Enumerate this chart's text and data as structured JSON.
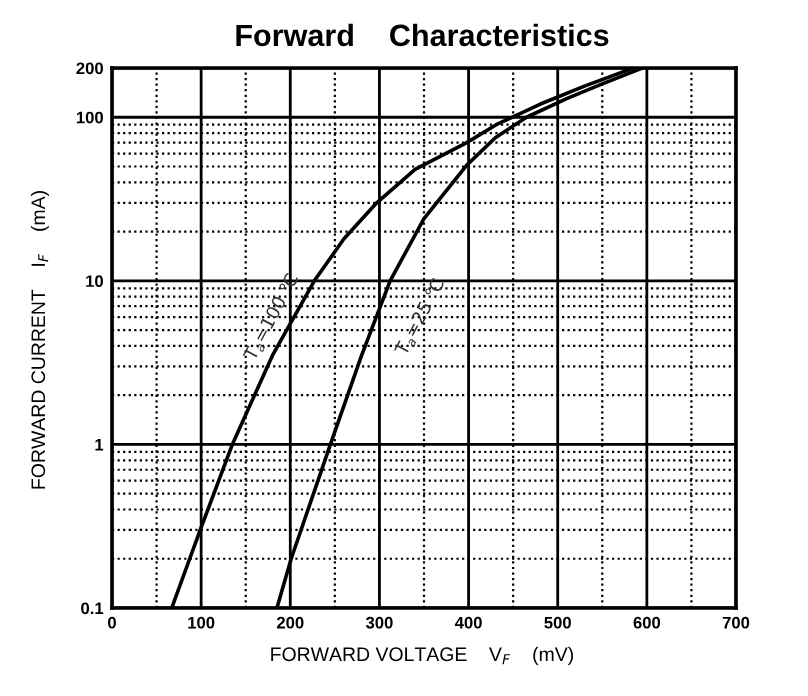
{
  "chart_data": {
    "type": "line",
    "title": "Forward    Characteristics",
    "xlabel": "FORWARD VOLTAGE    V$_{F}$    (mV)",
    "ylabel": "FORWARD CURRENT    I$_{F}$    (mA)",
    "series": [
      {
        "color": "#000000",
        "x": [
          67,
          99,
          135,
          180,
          227,
          260,
          297,
          340,
          398,
          431,
          480,
          530,
          585
        ],
        "values": [
          0.1,
          0.3,
          1,
          3.5,
          10,
          18,
          30,
          48,
          70,
          90,
          120,
          155,
          200
        ]
      },
      {
        "color": "#000000",
        "x": [
          185,
          201,
          245,
          280,
          312,
          350,
          398,
          430,
          465,
          510,
          550,
          595
        ],
        "values": [
          0.1,
          0.2,
          1,
          3.5,
          10,
          24,
          51,
          75,
          100,
          130,
          160,
          200
        ]
      }
    ],
    "annotations": [
      {
        "text": "T$_{a}$=100 ℃",
        "x": 205,
        "y": 6
      },
      {
        "text": "T$_{a}$=25 ℃",
        "x": 303,
        "y": 6
      }
    ],
    "log": "y",
    "xlim": [
      0,
      700
    ],
    "ylim": [
      0.1,
      200
    ],
    "xticks": [
      0,
      100,
      200,
      300,
      400,
      500,
      600,
      700
    ],
    "yticks": [
      0.1,
      1,
      10,
      100,
      200
    ],
    "grid": true,
    "marker": "none",
    "line_style": "solid"
  }
}
